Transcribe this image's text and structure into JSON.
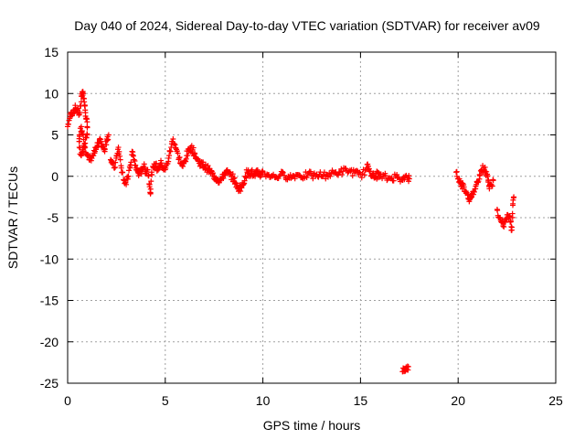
{
  "chart_data": {
    "type": "scatter",
    "title": "Day 040 of 2024, Sidereal Day-to-day VTEC variation (SDTVAR) for receiver av09",
    "xlabel": "GPS time / hours",
    "ylabel": "SDTVAR / TECUs",
    "xlim": [
      0,
      25
    ],
    "ylim": [
      -25,
      15
    ],
    "xticks": [
      0,
      5,
      10,
      15,
      20,
      25
    ],
    "yticks": [
      15,
      10,
      5,
      0,
      -5,
      -10,
      -15,
      -20,
      -25
    ],
    "grid": true,
    "marker": "plus",
    "color": "#ff0000",
    "series": [
      {
        "name": "av09",
        "segments": [
          [
            [
              0.0,
              6.0
            ],
            [
              0.1,
              7.0
            ],
            [
              0.2,
              7.6
            ],
            [
              0.3,
              8.0
            ],
            [
              0.4,
              8.2
            ],
            [
              0.5,
              8.0
            ],
            [
              0.6,
              7.5
            ],
            [
              0.7,
              9.0
            ],
            [
              0.75,
              10.2
            ],
            [
              0.8,
              10.0
            ],
            [
              0.85,
              9.0
            ],
            [
              0.9,
              8.0
            ],
            [
              0.95,
              7.0
            ],
            [
              1.0,
              6.0
            ],
            [
              1.0,
              5.0
            ],
            [
              0.9,
              4.0
            ],
            [
              0.8,
              3.0
            ],
            [
              0.7,
              2.5
            ],
            [
              0.6,
              3.5
            ],
            [
              0.6,
              5.0
            ],
            [
              0.7,
              6.0
            ],
            [
              0.8,
              5.0
            ],
            [
              0.9,
              3.5
            ],
            [
              1.0,
              2.5
            ],
            [
              1.1,
              2.0
            ],
            [
              1.2,
              2.2
            ],
            [
              1.3,
              2.5
            ],
            [
              1.4,
              3.0
            ],
            [
              1.5,
              3.5
            ],
            [
              1.6,
              4.0
            ],
            [
              1.7,
              4.2
            ],
            [
              1.8,
              3.5
            ],
            [
              1.9,
              3.0
            ],
            [
              2.0,
              4.5
            ],
            [
              2.1,
              5.0
            ]
          ],
          [
            [
              2.2,
              2.0
            ],
            [
              2.3,
              1.5
            ],
            [
              2.4,
              1.0
            ],
            [
              2.5,
              2.5
            ],
            [
              2.6,
              3.5
            ],
            [
              2.7,
              2.0
            ],
            [
              2.8,
              0.5
            ],
            [
              2.9,
              -0.5
            ],
            [
              3.0,
              -1.0
            ],
            [
              3.1,
              0.0
            ],
            [
              3.2,
              1.0
            ],
            [
              3.3,
              3.0
            ],
            [
              3.4,
              2.0
            ],
            [
              3.5,
              1.0
            ],
            [
              3.6,
              0.5
            ],
            [
              3.7,
              0.3
            ],
            [
              3.8,
              0.8
            ],
            [
              3.9,
              1.2
            ],
            [
              4.0,
              0.6
            ],
            [
              4.1,
              0.8
            ],
            [
              4.2,
              -1.0
            ],
            [
              4.25,
              -2.0
            ],
            [
              4.3,
              0.5
            ],
            [
              4.4,
              1.0
            ],
            [
              4.5,
              1.5
            ],
            [
              4.6,
              0.8
            ],
            [
              4.7,
              1.2
            ],
            [
              4.8,
              1.6
            ],
            [
              4.9,
              1.0
            ],
            [
              5.0,
              0.8
            ],
            [
              5.1,
              1.5
            ],
            [
              5.2,
              2.5
            ],
            [
              5.3,
              3.5
            ],
            [
              5.4,
              4.5
            ],
            [
              5.5,
              3.8
            ],
            [
              5.6,
              3.0
            ],
            [
              5.7,
              2.2
            ],
            [
              5.8,
              1.5
            ],
            [
              5.9,
              1.2
            ],
            [
              6.0,
              1.8
            ],
            [
              6.1,
              2.5
            ],
            [
              6.2,
              3.0
            ],
            [
              6.3,
              3.5
            ],
            [
              6.4,
              3.2
            ],
            [
              6.5,
              2.8
            ],
            [
              6.6,
              2.2
            ],
            [
              6.7,
              1.8
            ],
            [
              6.8,
              1.6
            ],
            [
              6.9,
              1.4
            ],
            [
              7.0,
              1.2
            ],
            [
              7.1,
              1.0
            ],
            [
              7.2,
              0.8
            ],
            [
              7.3,
              0.6
            ],
            [
              7.4,
              0.3
            ],
            [
              7.5,
              0.0
            ],
            [
              7.6,
              -0.2
            ],
            [
              7.7,
              -0.4
            ],
            [
              7.8,
              -0.5
            ],
            [
              7.9,
              -0.3
            ],
            [
              8.0,
              0.2
            ],
            [
              8.1,
              0.5
            ],
            [
              8.2,
              0.4
            ],
            [
              8.3,
              0.2
            ],
            [
              8.4,
              0.0
            ],
            [
              8.5,
              -0.3
            ],
            [
              8.6,
              -0.8
            ],
            [
              8.7,
              -1.5
            ],
            [
              8.8,
              -1.4
            ],
            [
              8.9,
              -1.3
            ],
            [
              9.0,
              -1.0
            ],
            [
              9.1,
              0.0
            ],
            [
              9.2,
              0.5
            ],
            [
              9.3,
              0.3
            ],
            [
              9.4,
              0.6
            ],
            [
              9.5,
              0.2
            ],
            [
              9.6,
              0.0
            ],
            [
              9.7,
              0.4
            ],
            [
              9.8,
              0.3
            ],
            [
              9.9,
              0.2
            ],
            [
              10.0,
              0.5
            ]
          ],
          [
            [
              10.1,
              0.3
            ],
            [
              10.3,
              0.2
            ],
            [
              10.5,
              0.0
            ],
            [
              10.7,
              -0.1
            ],
            [
              10.9,
              0.2
            ],
            [
              11.1,
              0.1
            ],
            [
              11.3,
              0.0
            ],
            [
              11.5,
              -0.1
            ],
            [
              11.7,
              0.2
            ],
            [
              11.9,
              0.1
            ],
            [
              12.1,
              0.0
            ],
            [
              12.3,
              0.2
            ],
            [
              12.5,
              0.1
            ],
            [
              12.7,
              0.0
            ],
            [
              12.9,
              0.2
            ],
            [
              13.1,
              0.1
            ],
            [
              13.3,
              0.2
            ],
            [
              13.5,
              0.3
            ],
            [
              13.7,
              0.4
            ],
            [
              13.9,
              0.5
            ],
            [
              14.1,
              0.6
            ],
            [
              14.3,
              0.7
            ],
            [
              14.5,
              0.6
            ],
            [
              14.7,
              0.4
            ],
            [
              14.9,
              0.2
            ],
            [
              15.1,
              0.3
            ],
            [
              15.3,
              0.8
            ],
            [
              15.4,
              1.2
            ],
            [
              15.5,
              0.6
            ],
            [
              15.6,
              0.2
            ],
            [
              15.7,
              -0.2
            ],
            [
              15.8,
              0.0
            ],
            [
              15.9,
              0.4
            ],
            [
              16.0,
              -0.1
            ],
            [
              16.2,
              0.0
            ],
            [
              16.4,
              -0.3
            ],
            [
              16.6,
              -0.2
            ],
            [
              16.8,
              0.0
            ],
            [
              17.0,
              -0.3
            ],
            [
              17.2,
              -0.1
            ],
            [
              17.4,
              -0.2
            ],
            [
              17.5,
              -0.3
            ]
          ],
          [
            [
              17.15,
              -23.6
            ],
            [
              17.25,
              -23.4
            ],
            [
              17.35,
              -23.2
            ],
            [
              17.45,
              -23.0
            ]
          ],
          [
            [
              19.9,
              0.5
            ],
            [
              20.0,
              -0.3
            ],
            [
              20.1,
              -0.8
            ],
            [
              20.2,
              -1.0
            ],
            [
              20.3,
              -1.3
            ],
            [
              20.4,
              -1.8
            ],
            [
              20.5,
              -2.2
            ],
            [
              20.6,
              -2.8
            ],
            [
              20.7,
              -2.5
            ],
            [
              20.8,
              -1.8
            ],
            [
              20.9,
              -1.2
            ],
            [
              21.0,
              -0.6
            ],
            [
              21.1,
              0.2
            ],
            [
              21.2,
              0.8
            ],
            [
              21.3,
              1.0
            ],
            [
              21.4,
              0.6
            ],
            [
              21.5,
              0.0
            ],
            [
              21.55,
              -0.5
            ],
            [
              21.6,
              -1.5
            ],
            [
              21.7,
              -1.0
            ],
            [
              21.8,
              -0.5
            ]
          ],
          [
            [
              22.0,
              -4.0
            ],
            [
              22.1,
              -5.0
            ],
            [
              22.2,
              -5.5
            ],
            [
              22.3,
              -6.0
            ],
            [
              22.4,
              -5.5
            ],
            [
              22.5,
              -5.0
            ],
            [
              22.6,
              -4.8
            ],
            [
              22.7,
              -5.5
            ],
            [
              22.75,
              -6.5
            ],
            [
              22.8,
              -3.5
            ],
            [
              22.85,
              -2.5
            ]
          ]
        ]
      }
    ]
  }
}
